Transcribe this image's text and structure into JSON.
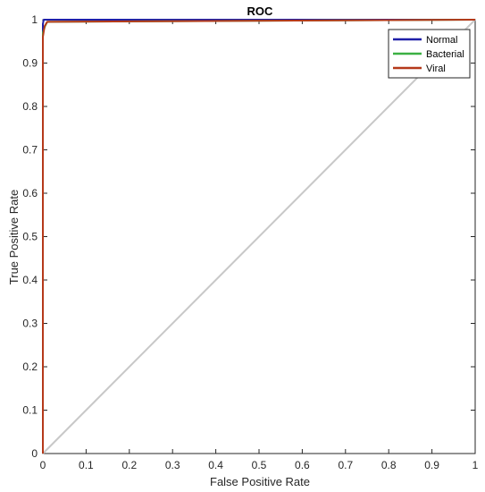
{
  "chart_data": {
    "type": "line",
    "title": "ROC",
    "xlabel": "False Positive Rate",
    "ylabel": "True Positive Rate",
    "xlim": [
      0,
      1
    ],
    "ylim": [
      0,
      1
    ],
    "xticks": [
      0,
      0.1,
      0.2,
      0.3,
      0.4,
      0.5,
      0.6,
      0.7,
      0.8,
      0.9,
      1
    ],
    "yticks": [
      0,
      0.1,
      0.2,
      0.3,
      0.4,
      0.5,
      0.6,
      0.7,
      0.8,
      0.9,
      1
    ],
    "xtick_labels": [
      "0",
      "0.1",
      "0.2",
      "0.3",
      "0.4",
      "0.5",
      "0.6",
      "0.7",
      "0.8",
      "0.9",
      "1"
    ],
    "ytick_labels": [
      "0",
      "0.1",
      "0.2",
      "0.3",
      "0.4",
      "0.5",
      "0.6",
      "0.7",
      "0.8",
      "0.9",
      "1"
    ],
    "grid": false,
    "legend_position": "top-right",
    "series": [
      {
        "name": "Normal",
        "color": "#1f1fa8",
        "x": [
          0,
          0,
          0.002,
          1
        ],
        "y": [
          0,
          0.99,
          1,
          1
        ]
      },
      {
        "name": "Bacterial",
        "color": "#3cb043",
        "x": [
          0,
          0,
          0.005,
          0.01,
          1
        ],
        "y": [
          0,
          0.97,
          0.985,
          0.995,
          1
        ]
      },
      {
        "name": "Viral",
        "color": "#b5391a",
        "x": [
          0,
          0,
          0.004,
          0.01,
          1
        ],
        "y": [
          0,
          0.96,
          0.985,
          0.995,
          1
        ]
      }
    ],
    "reference_line": {
      "color": "#c8c8c8",
      "x": [
        0,
        1
      ],
      "y": [
        0,
        1
      ]
    }
  }
}
